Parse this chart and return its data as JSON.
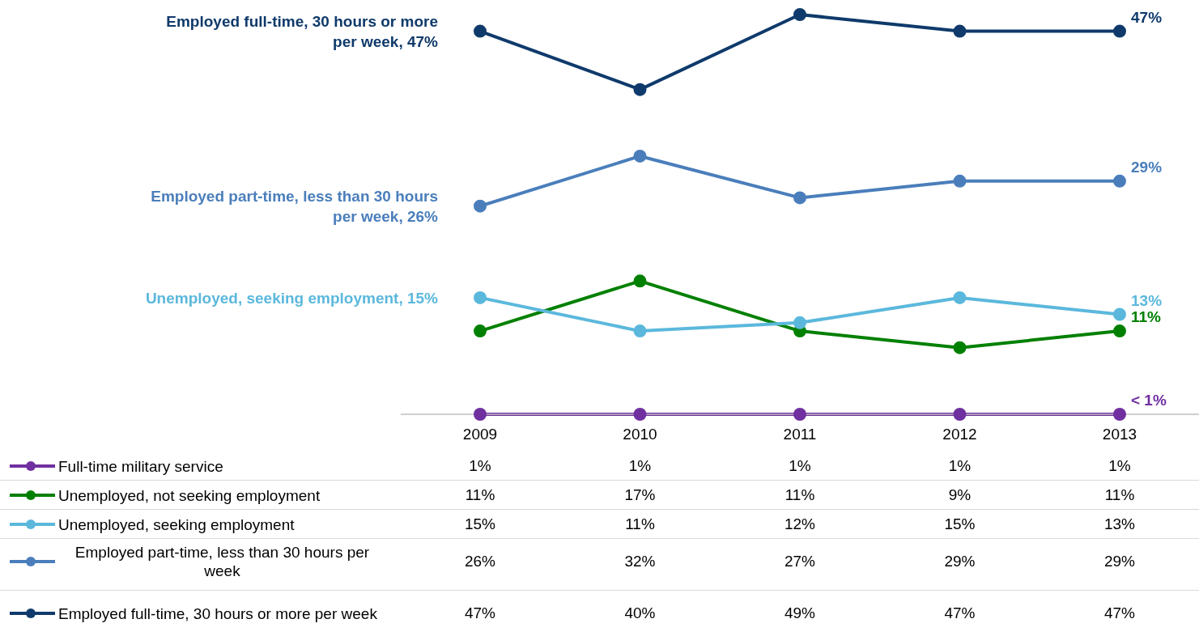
{
  "chart_data": {
    "type": "line",
    "categories": [
      "2009",
      "2010",
      "2011",
      "2012",
      "2013"
    ],
    "series": [
      {
        "name": "Full-time military service",
        "color": "#7030a0",
        "values": [
          1,
          1,
          1,
          1,
          1
        ],
        "value_labels": [
          "1%",
          "1%",
          "1%",
          "1%",
          "1%"
        ]
      },
      {
        "name": "Unemployed, not seeking employment",
        "color": "#008000",
        "values": [
          11,
          17,
          11,
          9,
          11
        ],
        "value_labels": [
          "11%",
          "17%",
          "11%",
          "9%",
          "11%"
        ]
      },
      {
        "name": "Unemployed, seeking employment",
        "color": "#5bb8dc",
        "values": [
          15,
          11,
          12,
          15,
          13
        ],
        "value_labels": [
          "15%",
          "11%",
          "12%",
          "15%",
          "13%"
        ]
      },
      {
        "name": "Employed part-time, less than 30 hours per week",
        "color": "#4a7ebb",
        "values": [
          26,
          32,
          27,
          29,
          29
        ],
        "value_labels": [
          "26%",
          "32%",
          "27%",
          "29%",
          "29%"
        ]
      },
      {
        "name": "Employed full-time, 30 hours or more per week",
        "color": "#0f3a6b",
        "values": [
          47,
          40,
          49,
          47,
          47
        ],
        "value_labels": [
          "47%",
          "40%",
          "49%",
          "47%",
          "47%"
        ]
      }
    ],
    "legend": "bottom",
    "marker": "circle",
    "annotations": [
      {
        "text": "Employed full-time, 30 hours or more per week, 47%",
        "x": "2009",
        "y": 47
      },
      {
        "text": "Employed part-time, less than 30 hours per week, 26%",
        "x": "2009",
        "y": 26
      },
      {
        "text": "Unemployed, seeking employment, 15%",
        "x": "2009",
        "y": 15
      },
      {
        "text": "47%",
        "x": "2013",
        "y": 47
      },
      {
        "text": "29%",
        "x": "2013",
        "y": 29
      },
      {
        "text": "13%",
        "x": "2013",
        "y": 13
      },
      {
        "text": "11%",
        "x": "2013",
        "y": 11
      },
      {
        "text": "< 1%",
        "x": "2013",
        "y": 1
      }
    ]
  }
}
